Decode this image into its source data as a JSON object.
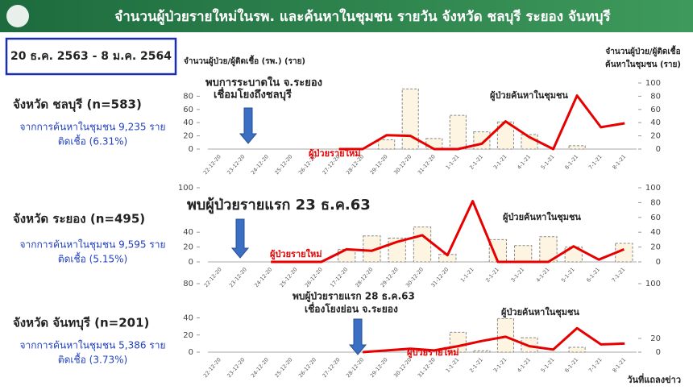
{
  "header": {
    "title": "จำนวนผู้ป่วยรายใหม่ในรพ. และค้นหาในชุมชน รายวัน จังหวัด ชลบุรี ระยอง จันทบุรี"
  },
  "date_range": "20 ธ.ค. 2563 - 8 ม.ค. 2564",
  "axis_titles": {
    "left": "จำนวนผู้ป่วย/ผู้ติดเชื้อ (รพ.) (ราย)",
    "right": [
      "จำนวนผู้ป่วย/ผู้ติดเชื้อ",
      "ค้นหาในชุมชน (ราย)"
    ]
  },
  "footer": "วันที่แถลงข่าว",
  "provinces": [
    {
      "name": "จังหวัด ชลบุรี (n=583)",
      "search": "จากการค้นหาในชุมชน 9,235 ราย",
      "rate": "ติดเชื้อ (6.31%)"
    },
    {
      "name": "จังหวัด ระยอง (n=495)",
      "search": "จากการค้นหาในชุมชน 9,595 ราย",
      "rate": "ติดเชื้อ (5.15%)"
    },
    {
      "name": "จังหวัด จันทบุรี (n=201)",
      "search": "จากการค้นหาในชุมชน 5,386 ราย",
      "rate": "ติดเชื้อ (3.73%)"
    }
  ],
  "chart_data": [
    {
      "type": "combo",
      "categories": [
        "22-12-20",
        "23-12-20",
        "24-12-20",
        "25-12-20",
        "26-12-20",
        "27-12-20",
        "28-12-20",
        "29-12-20",
        "30-12-20",
        "31-12-20",
        "1-1-21",
        "2-1-21",
        "3-1-21",
        "4-1-21",
        "5-1-21",
        "6-1-21",
        "7-1-21",
        "8-1-21"
      ],
      "series": [
        {
          "name": "ผู้ป่วยค้นหาในชุมชน",
          "type": "bar",
          "axis": "y2",
          "color": "#fdf5e2",
          "values": [
            0,
            0,
            0,
            0,
            0,
            0,
            0,
            14,
            91,
            16,
            51,
            26,
            41,
            22,
            0,
            5,
            0,
            0
          ]
        },
        {
          "name": "ผู้ป่วยรายใหม่",
          "type": "line",
          "color": "#e60000",
          "values": [
            null,
            null,
            null,
            null,
            null,
            0,
            0,
            21,
            20,
            0,
            0,
            8,
            42,
            18,
            0,
            81,
            33,
            39
          ]
        }
      ],
      "ylim": [
        0,
        100
      ],
      "yticks": [
        0,
        20,
        40,
        60,
        80
      ],
      "y2lim": [
        0,
        100
      ],
      "y2ticks": [
        0,
        20,
        40,
        60,
        80,
        100
      ],
      "annotations": [
        "พบการระบาดใน จ.ระยอง",
        "เชื่อมโยงถึงชลบุรี"
      ]
    },
    {
      "type": "combo",
      "categories": [
        "22-12-20",
        "23-12-20",
        "24-12-20",
        "25-12-20",
        "26-12-20",
        "17-12-20",
        "28-12-20",
        "29-12-20",
        "30-12-20",
        "31-12-20",
        "1-1-21",
        "2-1-21",
        "3-1-21",
        "4-1-21",
        "5-1-21",
        "6-1-21",
        "7-1-21"
      ],
      "series": [
        {
          "name": "ผู้ป่วยค้นหาในชุมชน",
          "type": "bar",
          "axis": "y2",
          "color": "#fdf5e2",
          "values": [
            0,
            0,
            0,
            0,
            0,
            17,
            35,
            32,
            47,
            10,
            0,
            30,
            22,
            34,
            20,
            0,
            25
          ]
        },
        {
          "name": "ผู้ป่วยรายใหม่",
          "type": "line",
          "color": "#e60000",
          "values": [
            null,
            null,
            0,
            0,
            0,
            17,
            15,
            27,
            36,
            9,
            82,
            0,
            0,
            0,
            21,
            3,
            17
          ]
        }
      ],
      "ylim": [
        0,
        100
      ],
      "yticks": [
        0,
        20,
        40,
        100
      ],
      "y2lim": [
        0,
        100
      ],
      "y2ticks": [
        0,
        20,
        40,
        60,
        80,
        100
      ],
      "annotations": [
        "พบผู้ป่วยรายแรก 23 ธ.ค.63"
      ]
    },
    {
      "type": "combo",
      "categories": [
        "22-12-20",
        "23-12-20",
        "24-12-20",
        "25-12-20",
        "26-12-20",
        "27-12-20",
        "28-12-20",
        "29-12-20",
        "30-12-20",
        "31-12-20",
        "1-1-21",
        "2-1-21",
        "3-1-21",
        "4-1-21",
        "5-1-21",
        "6-1-21",
        "7-1-21",
        "8-1-21"
      ],
      "series": [
        {
          "name": "ผู้ป่วยค้นหาในชุมชน",
          "type": "bar",
          "axis": "y2",
          "color": "#fdf5e2",
          "values": [
            0,
            0,
            0,
            0,
            0,
            0,
            0,
            0,
            0,
            0,
            29,
            2,
            49,
            21,
            0,
            7,
            0,
            0
          ]
        },
        {
          "name": "ผู้ป่วยรายใหม่",
          "type": "line",
          "color": "#e60000",
          "values": [
            null,
            null,
            null,
            null,
            null,
            null,
            0,
            2,
            4,
            2,
            7,
            13,
            18,
            7,
            3,
            28,
            9,
            10
          ]
        }
      ],
      "ylim": [
        0,
        80
      ],
      "yticks": [
        0,
        20,
        40,
        80
      ],
      "y2lim": [
        0,
        100
      ],
      "y2ticks": [
        0,
        20,
        100
      ],
      "annotations": [
        "พบผู้ป่วยรายแรก 28 ธ.ค.63",
        "เชื่องโยงย่อน จ.ระยอง"
      ]
    }
  ]
}
